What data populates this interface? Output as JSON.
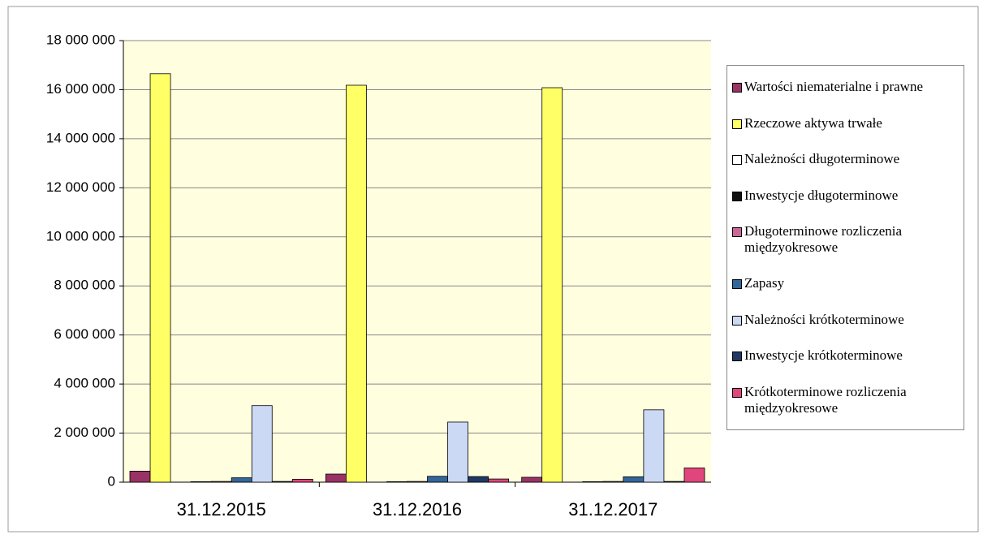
{
  "chart_data": {
    "type": "bar",
    "categories": [
      "31.12.2015",
      "31.12.2016",
      "31.12.2017"
    ],
    "series": [
      {
        "name": "Wartości niematerialne i prawne",
        "color": "#993366",
        "values": [
          450000,
          330000,
          200000
        ]
      },
      {
        "name": "Rzeczowe aktywa trwałe",
        "color": "#ffff66",
        "values": [
          16650000,
          16180000,
          16080000
        ]
      },
      {
        "name": "Należności długoterminowe",
        "color": "#ffffff",
        "values": [
          0,
          0,
          0
        ]
      },
      {
        "name": "Inwestycje długoterminowe",
        "color": "#111111",
        "values": [
          20000,
          20000,
          20000
        ]
      },
      {
        "name": "Długoterminowe rozliczenia międzyokresowe",
        "color": "#cc6699",
        "values": [
          30000,
          30000,
          30000
        ]
      },
      {
        "name": "Zapasy",
        "color": "#336699",
        "values": [
          180000,
          240000,
          220000
        ]
      },
      {
        "name": "Należności krótkoterminowe",
        "color": "#ccd9f5",
        "values": [
          3120000,
          2450000,
          2950000
        ]
      },
      {
        "name": "Inwestycje krótkoterminowe",
        "color": "#1f3864",
        "values": [
          30000,
          230000,
          30000
        ]
      },
      {
        "name": "Krótkoterminowe rozliczenia międzyokresowe",
        "color": "#e0457b",
        "values": [
          120000,
          130000,
          580000
        ]
      }
    ],
    "ylim": [
      0,
      18000000
    ],
    "yticks": [
      0,
      {
        "value": 2000000,
        "label": "2 000 000"
      },
      {
        "value": 4000000,
        "label": "4 000 000"
      },
      {
        "value": 6000000,
        "label": "6 000 000"
      },
      {
        "value": 8000000,
        "label": "8 000 000"
      },
      {
        "value": 10000000,
        "label": "10 000 000"
      },
      {
        "value": 12000000,
        "label": "12 000 000"
      },
      {
        "value": 14000000,
        "label": "14 000 000"
      },
      {
        "value": 16000000,
        "label": "16 000 000"
      },
      {
        "value": 18000000,
        "label": "18 000 000"
      }
    ],
    "grid": true
  }
}
